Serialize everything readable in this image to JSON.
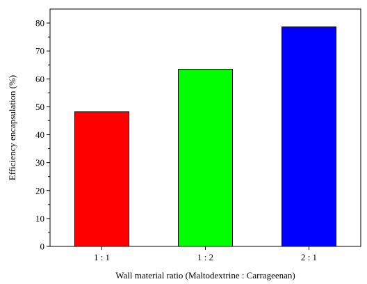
{
  "chart_data": {
    "type": "bar",
    "categories": [
      "1 : 1",
      "1 : 2",
      "2 : 1"
    ],
    "values": [
      48.2,
      63.4,
      78.6
    ],
    "bar_colors": [
      "#ff0000",
      "#00ff00",
      "#0000ff"
    ],
    "title": "",
    "xlabel": "Wall material ratio (Maltodextrine : Carrageenan)",
    "ylabel": "Efficiency encapsulation (%)",
    "ylim": [
      0,
      85
    ],
    "yticks": [
      0,
      10,
      20,
      30,
      40,
      50,
      60,
      70,
      80
    ],
    "y_tick_labels": [
      "0",
      "10",
      "20",
      "30",
      "40",
      "50",
      "60",
      "70",
      "80"
    ],
    "grid": false,
    "legend": "none"
  }
}
